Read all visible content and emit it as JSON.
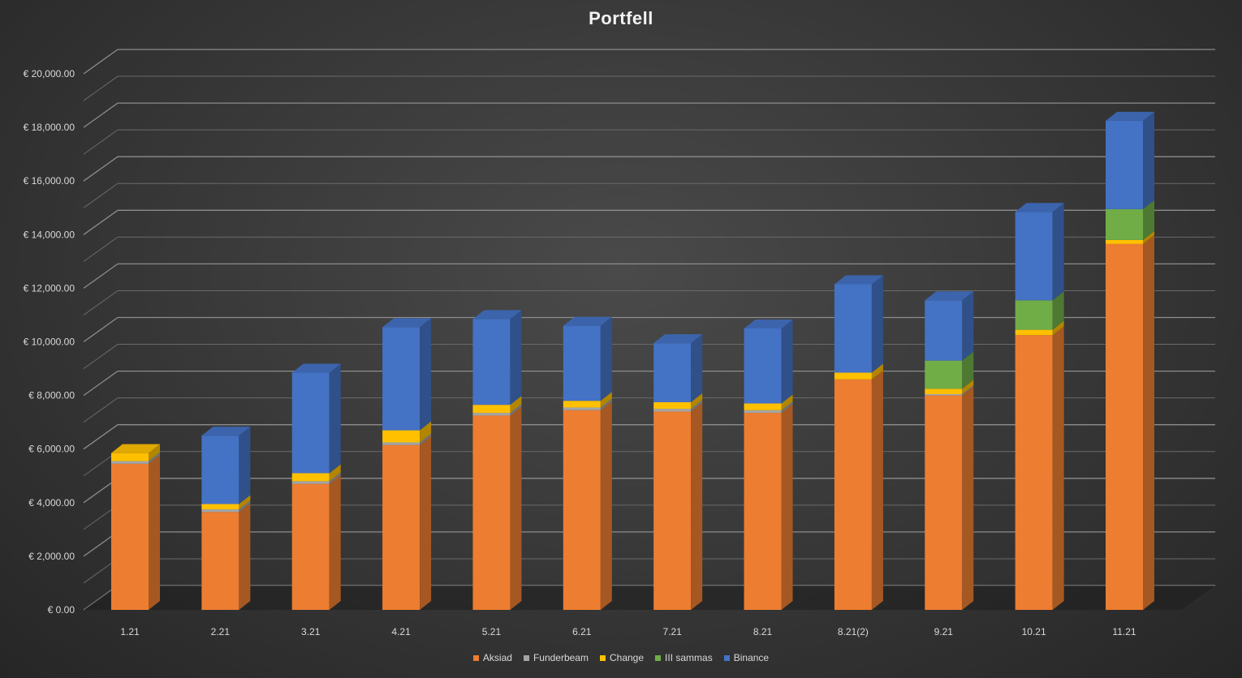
{
  "chart_data": {
    "type": "bar",
    "stacked": true,
    "three_d": true,
    "title": "Portfell",
    "xlabel": "",
    "ylabel": "",
    "categories": [
      "1.21",
      "2.21",
      "3.21",
      "4.21",
      "5.21",
      "6.21",
      "7.21",
      "8.21",
      "8.21(2)",
      "9.21",
      "10.21",
      "11.21"
    ],
    "series": [
      {
        "name": "Aksiad",
        "color": "#ED7D31",
        "values": [
          5450,
          3650,
          4700,
          6150,
          7250,
          7450,
          7400,
          7350,
          8600,
          8000,
          10250,
          13650
        ]
      },
      {
        "name": "Funderbeam",
        "color": "#A5A5A5",
        "values": [
          100,
          100,
          100,
          100,
          100,
          100,
          100,
          100,
          0,
          50,
          0,
          0
        ]
      },
      {
        "name": "Change",
        "color": "#FFC000",
        "values": [
          300,
          200,
          300,
          450,
          300,
          250,
          250,
          250,
          250,
          200,
          200,
          150
        ]
      },
      {
        "name": "III sammas",
        "color": "#70AD47",
        "values": [
          0,
          0,
          0,
          0,
          0,
          0,
          0,
          0,
          0,
          1050,
          1100,
          1150
        ]
      },
      {
        "name": "Binance",
        "color": "#4472C4",
        "values": [
          0,
          2550,
          3750,
          3850,
          3200,
          2800,
          2200,
          2800,
          3300,
          2250,
          3300,
          3300
        ]
      }
    ],
    "y_ticks": [
      "€ 0.00",
      "€ 2,000.00",
      "€ 4,000.00",
      "€ 6,000.00",
      "€ 8,000.00",
      "€ 10,000.00",
      "€ 12,000.00",
      "€ 14,000.00",
      "€ 16,000.00",
      "€ 18,000.00",
      "€ 20,000.00"
    ],
    "ylim": [
      0,
      20000
    ],
    "grid": true,
    "legend_position": "bottom"
  }
}
